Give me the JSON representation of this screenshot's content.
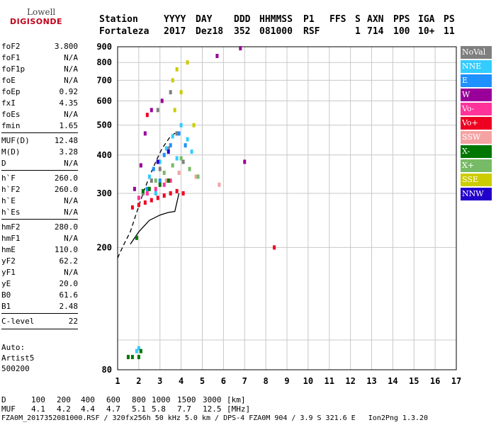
{
  "logo": {
    "line1": "Lowell",
    "line2": "DIGISONDE"
  },
  "header": {
    "labels": [
      "Station",
      "YYYY",
      "DAY",
      "DDD",
      "HHMMSS",
      "P1",
      "FFS",
      "S",
      "AXN",
      "PPS",
      "IGA",
      "PS"
    ],
    "values": [
      "Fortaleza",
      "2017",
      "Dez18",
      "352",
      "081000",
      "RSF",
      "",
      "1",
      "714",
      "100",
      "10+",
      "11"
    ]
  },
  "params": [
    {
      "label": "foF2",
      "value": "3.800"
    },
    {
      "label": "foF1",
      "value": "N/A"
    },
    {
      "label": "foF1p",
      "value": "N/A"
    },
    {
      "label": "foE",
      "value": "N/A"
    },
    {
      "label": "foEp",
      "value": "0.92"
    },
    {
      "label": "fxI",
      "value": "4.35"
    },
    {
      "label": "foEs",
      "value": "N/A"
    },
    {
      "label": "fmin",
      "value": "1.65"
    },
    {
      "label": "MUF(D)",
      "value": "12.48"
    },
    {
      "label": "M(D)",
      "value": "3.28"
    },
    {
      "label": "D",
      "value": "N/A"
    },
    {
      "label": "h`F",
      "value": "260.0"
    },
    {
      "label": "h`F2",
      "value": "260.0"
    },
    {
      "label": "h`E",
      "value": "N/A"
    },
    {
      "label": "h`Es",
      "value": "N/A"
    },
    {
      "label": "hmF2",
      "value": "280.0"
    },
    {
      "label": "hmF1",
      "value": "N/A"
    },
    {
      "label": "hmE",
      "value": "110.0"
    },
    {
      "label": "yF2",
      "value": "62.2"
    },
    {
      "label": "yF1",
      "value": "N/A"
    },
    {
      "label": "yE",
      "value": "20.0"
    },
    {
      "label": "B0",
      "value": "61.6"
    },
    {
      "label": "B1",
      "value": "2.48"
    },
    {
      "label": "C-level",
      "value": "22"
    }
  ],
  "auto": [
    "Auto:",
    "Artist5",
    "500200"
  ],
  "legend": [
    {
      "label": "NoVal",
      "color": "#7f7f7f"
    },
    {
      "label": "NNE",
      "color": "#33ccff"
    },
    {
      "label": "E",
      "color": "#1e90ff"
    },
    {
      "label": "W",
      "color": "#990099"
    },
    {
      "label": "Vo-",
      "color": "#ff3399"
    },
    {
      "label": "Vo+",
      "color": "#ee0022"
    },
    {
      "label": "SSW",
      "color": "#f4a3a3"
    },
    {
      "label": "X-",
      "color": "#007700"
    },
    {
      "label": "X+",
      "color": "#77bb66"
    },
    {
      "label": "SSE",
      "color": "#cccc00"
    },
    {
      "label": "NNW",
      "color": "#2200cc"
    }
  ],
  "chart_data": {
    "type": "scatter",
    "title": "",
    "xlabel": "",
    "ylabel": "",
    "xlim": [
      1,
      17
    ],
    "ylim": [
      80,
      900
    ],
    "y_scale": "log",
    "grid": true,
    "x_ticks": [
      1,
      2,
      3,
      4,
      5,
      6,
      7,
      8,
      9,
      10,
      11,
      12,
      13,
      14,
      15,
      16,
      17
    ],
    "y_ticks": [
      80,
      200,
      300,
      400,
      500,
      600,
      700,
      800,
      900
    ],
    "series": [
      {
        "name": "NoVal",
        "x": [
          2.2,
          2.6,
          3.0,
          3.4,
          3.8,
          2.9,
          3.5,
          4.1
        ],
        "y": [
          300,
          330,
          360,
          420,
          470,
          560,
          640,
          380
        ]
      },
      {
        "name": "NNE",
        "x": [
          2.5,
          3.0,
          3.3,
          3.6,
          4.0,
          4.3,
          3.8,
          4.5,
          2.8,
          1.9,
          2.0
        ],
        "y": [
          340,
          380,
          420,
          460,
          500,
          450,
          390,
          410,
          300,
          92,
          94
        ]
      },
      {
        "name": "E",
        "x": [
          2.7,
          3.2,
          3.5,
          3.9,
          4.2,
          3.0,
          2.4
        ],
        "y": [
          360,
          400,
          430,
          470,
          430,
          330,
          310
        ]
      },
      {
        "name": "W",
        "x": [
          1.8,
          2.1,
          2.3,
          2.6,
          5.7,
          6.8,
          7.0,
          3.1
        ],
        "y": [
          310,
          370,
          470,
          560,
          840,
          890,
          380,
          600
        ]
      },
      {
        "name": "Vo-",
        "x": [
          2.0,
          2.4,
          2.8,
          3.2,
          3.5
        ],
        "y": [
          290,
          300,
          310,
          320,
          330
        ]
      },
      {
        "name": "Vo+",
        "x": [
          1.7,
          2.0,
          2.3,
          2.6,
          2.9,
          3.2,
          3.5,
          3.8,
          4.1,
          2.4,
          8.4
        ],
        "y": [
          270,
          275,
          280,
          285,
          290,
          295,
          300,
          305,
          300,
          540,
          200
        ]
      },
      {
        "name": "SSW",
        "x": [
          3.3,
          3.9,
          4.7,
          5.8
        ],
        "y": [
          330,
          350,
          340,
          320
        ]
      },
      {
        "name": "X-",
        "x": [
          1.5,
          1.7,
          2.0,
          2.2,
          2.5,
          3.0,
          3.4,
          1.9,
          2.1
        ],
        "y": [
          88,
          88,
          88,
          305,
          310,
          320,
          330,
          215,
          92
        ]
      },
      {
        "name": "X+",
        "x": [
          2.8,
          3.2,
          3.6,
          4.0,
          4.4,
          4.8
        ],
        "y": [
          330,
          350,
          370,
          390,
          360,
          340
        ]
      },
      {
        "name": "SSE",
        "x": [
          3.6,
          3.8,
          4.0,
          4.3,
          3.7,
          4.6
        ],
        "y": [
          700,
          760,
          640,
          800,
          560,
          500
        ]
      },
      {
        "name": "NNW",
        "x": [
          3.4,
          2.9
        ],
        "y": [
          410,
          380
        ]
      }
    ],
    "curves": [
      {
        "name": "dashed",
        "x": [
          1.0,
          1.3,
          1.6,
          1.9,
          2.2,
          2.5,
          2.8,
          3.1,
          3.5,
          3.8
        ],
        "y": [
          185,
          205,
          225,
          260,
          300,
          340,
          380,
          420,
          460,
          475
        ]
      },
      {
        "name": "solid",
        "x": [
          1.6,
          2.0,
          2.5,
          3.0,
          3.4,
          3.7,
          3.9
        ],
        "y": [
          205,
          225,
          245,
          255,
          260,
          262,
          300
        ]
      }
    ]
  },
  "footer": {
    "d_label": "D",
    "d_values": [
      "100",
      "200",
      "400",
      "600",
      "800",
      "1000",
      "1500",
      "3000",
      "[km]"
    ],
    "muf_label": "MUF",
    "muf_values": [
      "4.1",
      "4.2",
      "4.4",
      "4.7",
      "5.1",
      "5.8",
      "7.7",
      "12.5",
      "[MHz]"
    ],
    "info": "FZA0M_2017352081000.RSF / 320fx256h 50 kHz 5.0 km / DPS-4 FZA0M 904 / 3.9 S 321.6 E   Ion2Png 1.3.20"
  }
}
